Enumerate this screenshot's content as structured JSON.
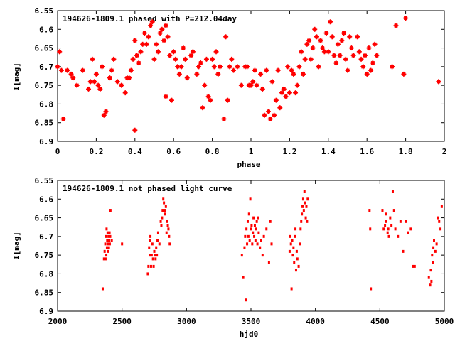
{
  "chart_data": [
    {
      "type": "scatter",
      "title": "194626-1809.1 phased with P=212.04day",
      "xlabel": "phase",
      "ylabel": "I[mag]",
      "xlim": [
        0,
        2
      ],
      "ylim": [
        6.9,
        6.55
      ],
      "y_inverted": true,
      "grid": false,
      "marker": "plus-dot",
      "marker_color": "#ff0000",
      "x_ticks": [
        "0",
        "0.2",
        "0.4",
        "0.6",
        "0.8",
        "1",
        "1.2",
        "1.4",
        "1.6",
        "1.8",
        "2"
      ],
      "y_ticks": [
        "6.55",
        "6.6",
        "6.65",
        "6.7",
        "6.75",
        "6.8",
        "6.85",
        "6.9"
      ],
      "points": [
        [
          0.0,
          6.7
        ],
        [
          0.01,
          6.66
        ],
        [
          0.02,
          6.71
        ],
        [
          0.03,
          6.84
        ],
        [
          0.05,
          6.71
        ],
        [
          0.07,
          6.72
        ],
        [
          0.08,
          6.73
        ],
        [
          0.1,
          6.75
        ],
        [
          0.13,
          6.71
        ],
        [
          0.16,
          6.76
        ],
        [
          0.17,
          6.74
        ],
        [
          0.18,
          6.68
        ],
        [
          0.19,
          6.74
        ],
        [
          0.2,
          6.72
        ],
        [
          0.21,
          6.75
        ],
        [
          0.22,
          6.76
        ],
        [
          0.23,
          6.7
        ],
        [
          0.24,
          6.83
        ],
        [
          0.25,
          6.82
        ],
        [
          0.27,
          6.73
        ],
        [
          0.28,
          6.71
        ],
        [
          0.29,
          6.68
        ],
        [
          0.31,
          6.74
        ],
        [
          0.33,
          6.75
        ],
        [
          0.35,
          6.77
        ],
        [
          0.36,
          6.73
        ],
        [
          0.37,
          6.73
        ],
        [
          0.38,
          6.71
        ],
        [
          0.39,
          6.68
        ],
        [
          0.4,
          6.87
        ],
        [
          0.4,
          6.63
        ],
        [
          0.41,
          6.67
        ],
        [
          0.42,
          6.69
        ],
        [
          0.43,
          6.66
        ],
        [
          0.44,
          6.64
        ],
        [
          0.45,
          6.61
        ],
        [
          0.46,
          6.64
        ],
        [
          0.47,
          6.62
        ],
        [
          0.48,
          6.59
        ],
        [
          0.49,
          6.58
        ],
        [
          0.5,
          6.68
        ],
        [
          0.51,
          6.64
        ],
        [
          0.52,
          6.66
        ],
        [
          0.53,
          6.61
        ],
        [
          0.54,
          6.6
        ],
        [
          0.55,
          6.63
        ],
        [
          0.56,
          6.59
        ],
        [
          0.57,
          6.62
        ],
        [
          0.58,
          6.67
        ],
        [
          0.56,
          6.78
        ],
        [
          0.59,
          6.79
        ],
        [
          0.6,
          6.66
        ],
        [
          0.61,
          6.68
        ],
        [
          0.62,
          6.7
        ],
        [
          0.63,
          6.72
        ],
        [
          0.64,
          6.7
        ],
        [
          0.65,
          6.65
        ],
        [
          0.66,
          6.68
        ],
        [
          0.67,
          6.73
        ],
        [
          0.69,
          6.67
        ],
        [
          0.7,
          6.66
        ],
        [
          0.72,
          6.72
        ],
        [
          0.73,
          6.7
        ],
        [
          0.74,
          6.69
        ],
        [
          0.75,
          6.81
        ],
        [
          0.76,
          6.75
        ],
        [
          0.77,
          6.68
        ],
        [
          0.78,
          6.78
        ],
        [
          0.79,
          6.79
        ],
        [
          0.8,
          6.68
        ],
        [
          0.81,
          6.7
        ],
        [
          0.82,
          6.66
        ],
        [
          0.83,
          6.72
        ],
        [
          0.84,
          6.7
        ],
        [
          0.86,
          6.84
        ],
        [
          0.87,
          6.62
        ],
        [
          0.88,
          6.79
        ],
        [
          0.89,
          6.7
        ],
        [
          0.9,
          6.68
        ],
        [
          0.91,
          6.71
        ],
        [
          0.93,
          6.7
        ],
        [
          0.95,
          6.75
        ],
        [
          0.97,
          6.7
        ],
        [
          0.98,
          6.7
        ],
        [
          0.99,
          6.75
        ],
        [
          1.0,
          6.75
        ],
        [
          1.01,
          6.74
        ],
        [
          1.02,
          6.71
        ],
        [
          1.03,
          6.75
        ],
        [
          1.05,
          6.72
        ],
        [
          1.06,
          6.76
        ],
        [
          1.07,
          6.83
        ],
        [
          1.08,
          6.71
        ],
        [
          1.09,
          6.82
        ],
        [
          1.1,
          6.84
        ],
        [
          1.11,
          6.74
        ],
        [
          1.12,
          6.83
        ],
        [
          1.13,
          6.79
        ],
        [
          1.14,
          6.71
        ],
        [
          1.15,
          6.81
        ],
        [
          1.16,
          6.77
        ],
        [
          1.17,
          6.76
        ],
        [
          1.18,
          6.78
        ],
        [
          1.19,
          6.7
        ],
        [
          1.2,
          6.77
        ],
        [
          1.21,
          6.71
        ],
        [
          1.22,
          6.72
        ],
        [
          1.23,
          6.77
        ],
        [
          1.24,
          6.75
        ],
        [
          1.25,
          6.7
        ],
        [
          1.26,
          6.66
        ],
        [
          1.27,
          6.72
        ],
        [
          1.28,
          6.68
        ],
        [
          1.29,
          6.64
        ],
        [
          1.3,
          6.63
        ],
        [
          1.31,
          6.68
        ],
        [
          1.32,
          6.65
        ],
        [
          1.33,
          6.6
        ],
        [
          1.34,
          6.62
        ],
        [
          1.35,
          6.7
        ],
        [
          1.36,
          6.63
        ],
        [
          1.37,
          6.65
        ],
        [
          1.38,
          6.66
        ],
        [
          1.39,
          6.61
        ],
        [
          1.4,
          6.66
        ],
        [
          1.41,
          6.58
        ],
        [
          1.42,
          6.62
        ],
        [
          1.43,
          6.67
        ],
        [
          1.44,
          6.69
        ],
        [
          1.45,
          6.64
        ],
        [
          1.46,
          6.67
        ],
        [
          1.47,
          6.63
        ],
        [
          1.48,
          6.61
        ],
        [
          1.49,
          6.68
        ],
        [
          1.5,
          6.71
        ],
        [
          1.51,
          6.62
        ],
        [
          1.52,
          6.65
        ],
        [
          1.53,
          6.67
        ],
        [
          1.55,
          6.62
        ],
        [
          1.56,
          6.66
        ],
        [
          1.57,
          6.68
        ],
        [
          1.58,
          6.7
        ],
        [
          1.59,
          6.67
        ],
        [
          1.6,
          6.72
        ],
        [
          1.61,
          6.65
        ],
        [
          1.62,
          6.71
        ],
        [
          1.63,
          6.69
        ],
        [
          1.64,
          6.64
        ],
        [
          1.65,
          6.67
        ],
        [
          1.73,
          6.7
        ],
        [
          1.75,
          6.59
        ],
        [
          1.79,
          6.72
        ],
        [
          1.8,
          6.57
        ],
        [
          1.97,
          6.74
        ]
      ]
    },
    {
      "type": "scatter",
      "title": "194626-1809.1 not phased light curve",
      "xlabel": "hjd0",
      "ylabel": "I[mag]",
      "xlim": [
        2000,
        5000
      ],
      "ylim": [
        6.9,
        6.55
      ],
      "y_inverted": true,
      "grid": false,
      "marker": "dot",
      "marker_color": "#ff0000",
      "x_ticks": [
        "2000",
        "2500",
        "3000",
        "3500",
        "4000",
        "4500",
        "5000"
      ],
      "y_ticks": [
        "6.55",
        "6.6",
        "6.65",
        "6.7",
        "6.75",
        "6.8",
        "6.85",
        "6.9"
      ],
      "points": [
        [
          2350,
          6.84
        ],
        [
          2360,
          6.76
        ],
        [
          2365,
          6.74
        ],
        [
          2370,
          6.72
        ],
        [
          2372,
          6.76
        ],
        [
          2375,
          6.7
        ],
        [
          2378,
          6.75
        ],
        [
          2380,
          6.68
        ],
        [
          2383,
          6.73
        ],
        [
          2385,
          6.71
        ],
        [
          2388,
          6.69
        ],
        [
          2390,
          6.74
        ],
        [
          2392,
          6.72
        ],
        [
          2395,
          6.7
        ],
        [
          2398,
          6.73
        ],
        [
          2400,
          6.71
        ],
        [
          2403,
          6.69
        ],
        [
          2405,
          6.72
        ],
        [
          2408,
          6.7
        ],
        [
          2410,
          6.63
        ],
        [
          2420,
          6.71
        ],
        [
          2500,
          6.72
        ],
        [
          2700,
          6.8
        ],
        [
          2705,
          6.78
        ],
        [
          2710,
          6.73
        ],
        [
          2715,
          6.75
        ],
        [
          2718,
          6.71
        ],
        [
          2720,
          6.7
        ],
        [
          2725,
          6.78
        ],
        [
          2730,
          6.75
        ],
        [
          2735,
          6.72
        ],
        [
          2740,
          6.76
        ],
        [
          2745,
          6.78
        ],
        [
          2750,
          6.74
        ],
        [
          2755,
          6.75
        ],
        [
          2760,
          6.76
        ],
        [
          2765,
          6.73
        ],
        [
          2770,
          6.75
        ],
        [
          2775,
          6.71
        ],
        [
          2780,
          6.69
        ],
        [
          2790,
          6.72
        ],
        [
          2800,
          6.66
        ],
        [
          2805,
          6.67
        ],
        [
          2810,
          6.65
        ],
        [
          2815,
          6.63
        ],
        [
          2820,
          6.6
        ],
        [
          2825,
          6.61
        ],
        [
          2830,
          6.63
        ],
        [
          2835,
          6.64
        ],
        [
          2840,
          6.62
        ],
        [
          2845,
          6.69
        ],
        [
          2850,
          6.66
        ],
        [
          2855,
          6.67
        ],
        [
          2860,
          6.68
        ],
        [
          2865,
          6.7
        ],
        [
          2870,
          6.72
        ],
        [
          3430,
          6.75
        ],
        [
          3440,
          6.81
        ],
        [
          3450,
          6.73
        ],
        [
          3455,
          6.7
        ],
        [
          3460,
          6.87
        ],
        [
          3465,
          6.68
        ],
        [
          3470,
          6.72
        ],
        [
          3475,
          6.66
        ],
        [
          3480,
          6.7
        ],
        [
          3485,
          6.64
        ],
        [
          3490,
          6.71
        ],
        [
          3495,
          6.6
        ],
        [
          3500,
          6.68
        ],
        [
          3505,
          6.67
        ],
        [
          3510,
          6.72
        ],
        [
          3515,
          6.69
        ],
        [
          3520,
          6.65
        ],
        [
          3525,
          6.7
        ],
        [
          3530,
          6.67
        ],
        [
          3535,
          6.71
        ],
        [
          3540,
          6.68
        ],
        [
          3545,
          6.66
        ],
        [
          3550,
          6.72
        ],
        [
          3555,
          6.65
        ],
        [
          3560,
          6.69
        ],
        [
          3570,
          6.73
        ],
        [
          3580,
          6.71
        ],
        [
          3590,
          6.75
        ],
        [
          3600,
          6.7
        ],
        [
          3620,
          6.68
        ],
        [
          3640,
          6.77
        ],
        [
          3650,
          6.66
        ],
        [
          3660,
          6.72
        ],
        [
          3800,
          6.74
        ],
        [
          3805,
          6.7
        ],
        [
          3810,
          6.72
        ],
        [
          3815,
          6.84
        ],
        [
          3820,
          6.71
        ],
        [
          3825,
          6.75
        ],
        [
          3830,
          6.73
        ],
        [
          3835,
          6.77
        ],
        [
          3840,
          6.7
        ],
        [
          3845,
          6.68
        ],
        [
          3850,
          6.79
        ],
        [
          3855,
          6.74
        ],
        [
          3860,
          6.76
        ],
        [
          3870,
          6.78
        ],
        [
          3880,
          6.72
        ],
        [
          3885,
          6.68
        ],
        [
          3890,
          6.66
        ],
        [
          3895,
          6.64
        ],
        [
          3900,
          6.62
        ],
        [
          3905,
          6.6
        ],
        [
          3910,
          6.63
        ],
        [
          3915,
          6.58
        ],
        [
          3920,
          6.61
        ],
        [
          3925,
          6.65
        ],
        [
          3930,
          6.62
        ],
        [
          3935,
          6.66
        ],
        [
          3940,
          6.6
        ],
        [
          4420,
          6.63
        ],
        [
          4425,
          6.68
        ],
        [
          4430,
          6.84
        ],
        [
          4520,
          6.63
        ],
        [
          4530,
          6.68
        ],
        [
          4540,
          6.67
        ],
        [
          4545,
          6.64
        ],
        [
          4550,
          6.66
        ],
        [
          4560,
          6.69
        ],
        [
          4565,
          6.68
        ],
        [
          4570,
          6.7
        ],
        [
          4580,
          6.65
        ],
        [
          4590,
          6.67
        ],
        [
          4600,
          6.58
        ],
        [
          4610,
          6.63
        ],
        [
          4620,
          6.68
        ],
        [
          4640,
          6.7
        ],
        [
          4660,
          6.66
        ],
        [
          4680,
          6.74
        ],
        [
          4700,
          6.66
        ],
        [
          4720,
          6.69
        ],
        [
          4740,
          6.68
        ],
        [
          4760,
          6.78
        ],
        [
          4770,
          6.78
        ],
        [
          4880,
          6.81
        ],
        [
          4890,
          6.83
        ],
        [
          4895,
          6.79
        ],
        [
          4900,
          6.82
        ],
        [
          4905,
          6.75
        ],
        [
          4910,
          6.77
        ],
        [
          4915,
          6.73
        ],
        [
          4920,
          6.71
        ],
        [
          4930,
          6.74
        ],
        [
          4940,
          6.72
        ],
        [
          4950,
          6.65
        ],
        [
          4960,
          6.66
        ],
        [
          4970,
          6.68
        ],
        [
          4980,
          6.62
        ]
      ]
    }
  ]
}
